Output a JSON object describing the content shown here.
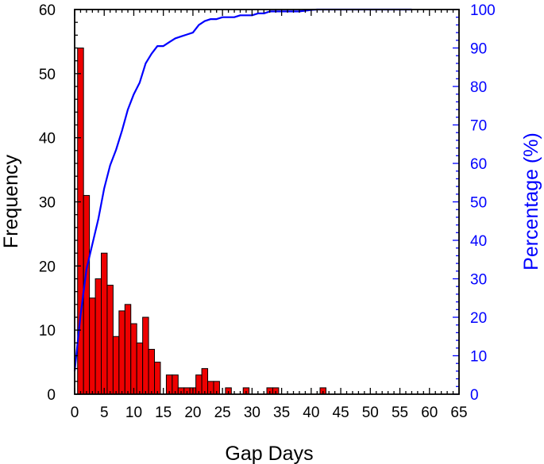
{
  "chart_data": {
    "type": "bar",
    "xlabel": "Gap Days",
    "ylabel": "Frequency",
    "y2label": "Percentage (%)",
    "xlim": [
      0,
      65
    ],
    "ylim": [
      0,
      60
    ],
    "y2lim": [
      0,
      100
    ],
    "x_ticks": [
      "0",
      "5",
      "10",
      "15",
      "20",
      "25",
      "30",
      "35",
      "40",
      "45",
      "50",
      "55",
      "60",
      "65"
    ],
    "y_ticks": [
      "0",
      "10",
      "20",
      "30",
      "40",
      "50",
      "60"
    ],
    "y2_ticks": [
      "0",
      "10",
      "20",
      "30",
      "40",
      "50",
      "60",
      "70",
      "80",
      "90",
      "100"
    ],
    "grid": false,
    "colors": {
      "bars": "#ee0000",
      "bar_edge": "#000000",
      "line": "#0000ff",
      "right_axis": "#0000ff"
    },
    "series": [
      {
        "type": "bar",
        "axis": "left",
        "x": [
          1,
          2,
          3,
          4,
          5,
          6,
          7,
          8,
          9,
          10,
          11,
          12,
          13,
          14,
          16,
          17,
          18,
          19,
          20,
          21,
          22,
          23,
          24,
          26,
          29,
          33,
          34,
          42
        ],
        "values": [
          54,
          31,
          15,
          18,
          22,
          17,
          9,
          13,
          14,
          11,
          8,
          12,
          7,
          5,
          3,
          3,
          1,
          1,
          1,
          3,
          4,
          2,
          2,
          1,
          1,
          1,
          1,
          1
        ]
      },
      {
        "type": "line",
        "axis": "right",
        "x": [
          0,
          1,
          2,
          3,
          4,
          5,
          6,
          7,
          8,
          9,
          10,
          11,
          12,
          13,
          14,
          15,
          16,
          17,
          18,
          19,
          20,
          21,
          22,
          23,
          24,
          25,
          26,
          27,
          28,
          29,
          30,
          31,
          32,
          33,
          34,
          35,
          36,
          37,
          38,
          39,
          40,
          41,
          42,
          43,
          44,
          45,
          46,
          47,
          48,
          49,
          50,
          51,
          52,
          53,
          54,
          55,
          56,
          57
        ],
        "values": [
          6,
          20.5,
          32.5,
          39,
          45.5,
          53.5,
          59.5,
          63.5,
          68.5,
          74,
          78,
          81,
          86,
          88.5,
          90.5,
          90.5,
          91.5,
          92.5,
          93,
          93.5,
          94,
          96,
          97,
          97.5,
          97.5,
          98,
          98,
          98,
          98.5,
          98.5,
          98.5,
          99,
          99,
          99.5,
          99.5,
          99.5,
          99.5,
          99.5,
          99.5,
          99.7,
          99.9,
          100,
          100,
          100,
          100,
          100,
          100,
          100,
          100,
          100,
          100,
          100,
          100,
          100,
          100,
          100,
          100,
          100
        ]
      }
    ]
  }
}
